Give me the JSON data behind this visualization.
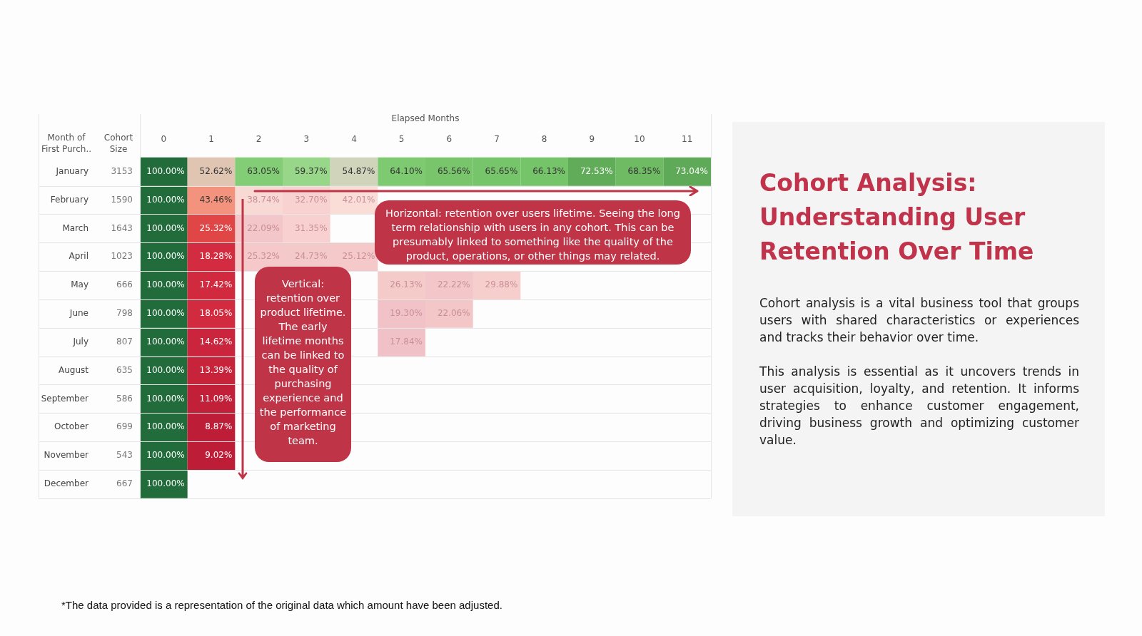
{
  "chart_data": {
    "type": "heatmap",
    "title": "Cohort Analysis: Understanding User Retention Over Time",
    "xlabel": "Elapsed Months",
    "ylabel": "Month of First Purch..",
    "y2label": "Cohort Size",
    "categories": [
      "0",
      "1",
      "2",
      "3",
      "4",
      "5",
      "6",
      "7",
      "8",
      "9",
      "10",
      "11"
    ],
    "y_categories": [
      "January",
      "February",
      "March",
      "April",
      "May",
      "June",
      "July",
      "August",
      "September",
      "October",
      "November",
      "December"
    ],
    "y2_categories": [
      "3153",
      "1590",
      "1643",
      "1023",
      "666",
      "798",
      "807",
      "635",
      "586",
      "699",
      "543",
      "667"
    ],
    "cells": [
      [
        100,
        52.62,
        63.05,
        59.37,
        54.87,
        64.1,
        65.56,
        65.65,
        66.13,
        72.53,
        68.35,
        73.04
      ],
      [
        100,
        43.46,
        38.74,
        32.7,
        42.01,
        null,
        null,
        null,
        null,
        null,
        null,
        null
      ],
      [
        100,
        25.32,
        22.09,
        31.35,
        null,
        null,
        null,
        null,
        null,
        null,
        null,
        null
      ],
      [
        100,
        18.28,
        25.32,
        24.73,
        25.12,
        null,
        null,
        null,
        null,
        null,
        null,
        null
      ],
      [
        100,
        17.42,
        null,
        null,
        null,
        26.13,
        22.22,
        29.88,
        null,
        null,
        null,
        null
      ],
      [
        100,
        18.05,
        null,
        null,
        null,
        19.3,
        22.06,
        null,
        null,
        null,
        null,
        null
      ],
      [
        100,
        14.62,
        null,
        null,
        null,
        17.84,
        null,
        null,
        null,
        null,
        null,
        null
      ],
      [
        100,
        13.39,
        null,
        null,
        null,
        null,
        null,
        null,
        null,
        null,
        null,
        null
      ],
      [
        100,
        11.09,
        null,
        null,
        null,
        null,
        null,
        null,
        null,
        null,
        null,
        null
      ],
      [
        100,
        8.87,
        null,
        null,
        null,
        null,
        null,
        null,
        null,
        null,
        null,
        null
      ],
      [
        100,
        9.02,
        null,
        null,
        null,
        null,
        null,
        null,
        null,
        null,
        null,
        null
      ],
      [
        100,
        null,
        null,
        null,
        null,
        null,
        null,
        null,
        null,
        null,
        null,
        null
      ]
    ],
    "cell_labels": [
      [
        "100.00%",
        "52.62%",
        "63.05%",
        "59.37%",
        "54.87%",
        "64.10%",
        "65.56%",
        "65.65%",
        "66.13%",
        "72.53%",
        "68.35%",
        "73.04%"
      ],
      [
        "100.00%",
        "43.46%",
        "38.74%",
        "32.70%",
        "42.01%",
        null,
        null,
        null,
        null,
        null,
        null,
        null
      ],
      [
        "100.00%",
        "25.32%",
        "22.09%",
        "31.35%",
        null,
        null,
        null,
        null,
        null,
        null,
        null,
        null
      ],
      [
        "100.00%",
        "18.28%",
        "25.32%",
        "24.73%",
        "25.12%",
        null,
        null,
        null,
        null,
        null,
        null,
        null
      ],
      [
        "100.00%",
        "17.42%",
        null,
        null,
        null,
        "26.13%",
        "22.22%",
        "29.88%",
        null,
        null,
        null,
        null
      ],
      [
        "100.00%",
        "18.05%",
        null,
        null,
        null,
        "19.30%",
        "22.06%",
        null,
        null,
        null,
        null,
        null
      ],
      [
        "100.00%",
        "14.62%",
        null,
        null,
        null,
        "17.84%",
        null,
        null,
        null,
        null,
        null,
        null
      ],
      [
        "100.00%",
        "13.39%",
        null,
        null,
        null,
        null,
        null,
        null,
        null,
        null,
        null,
        null
      ],
      [
        "100.00%",
        "11.09%",
        null,
        null,
        null,
        null,
        null,
        null,
        null,
        null,
        null,
        null
      ],
      [
        "100.00%",
        "8.87%",
        null,
        null,
        null,
        null,
        null,
        null,
        null,
        null,
        null,
        null
      ],
      [
        "100.00%",
        "9.02%",
        null,
        null,
        null,
        null,
        null,
        null,
        null,
        null,
        null,
        null
      ],
      [
        "100.00%",
        null,
        null,
        null,
        null,
        null,
        null,
        null,
        null,
        null,
        null,
        null
      ]
    ],
    "annotations": [
      "Cohort analysis is a vital business tool that groups users with shared characteristics or experiences and tracks their behavior over time.",
      "This analysis is essential as it uncovers trends in user acquisition, loyalty, and retention. It informs strategies to enhance customer engagement, driving business growth and optimizing customer value.",
      "Horizontal: retention over users lifetime. Seeing the long term relationship with users in any cohort. This can be presumably linked to something like the quality of the product, operations, or other things may related.",
      "Vertical: retention over product lifetime. The early lifetime months can be linked to the quality of purchasing experience and the performance of marketing team.",
      "*The data provided is a representation of the original data which amount have been adjusted."
    ]
  }
}
